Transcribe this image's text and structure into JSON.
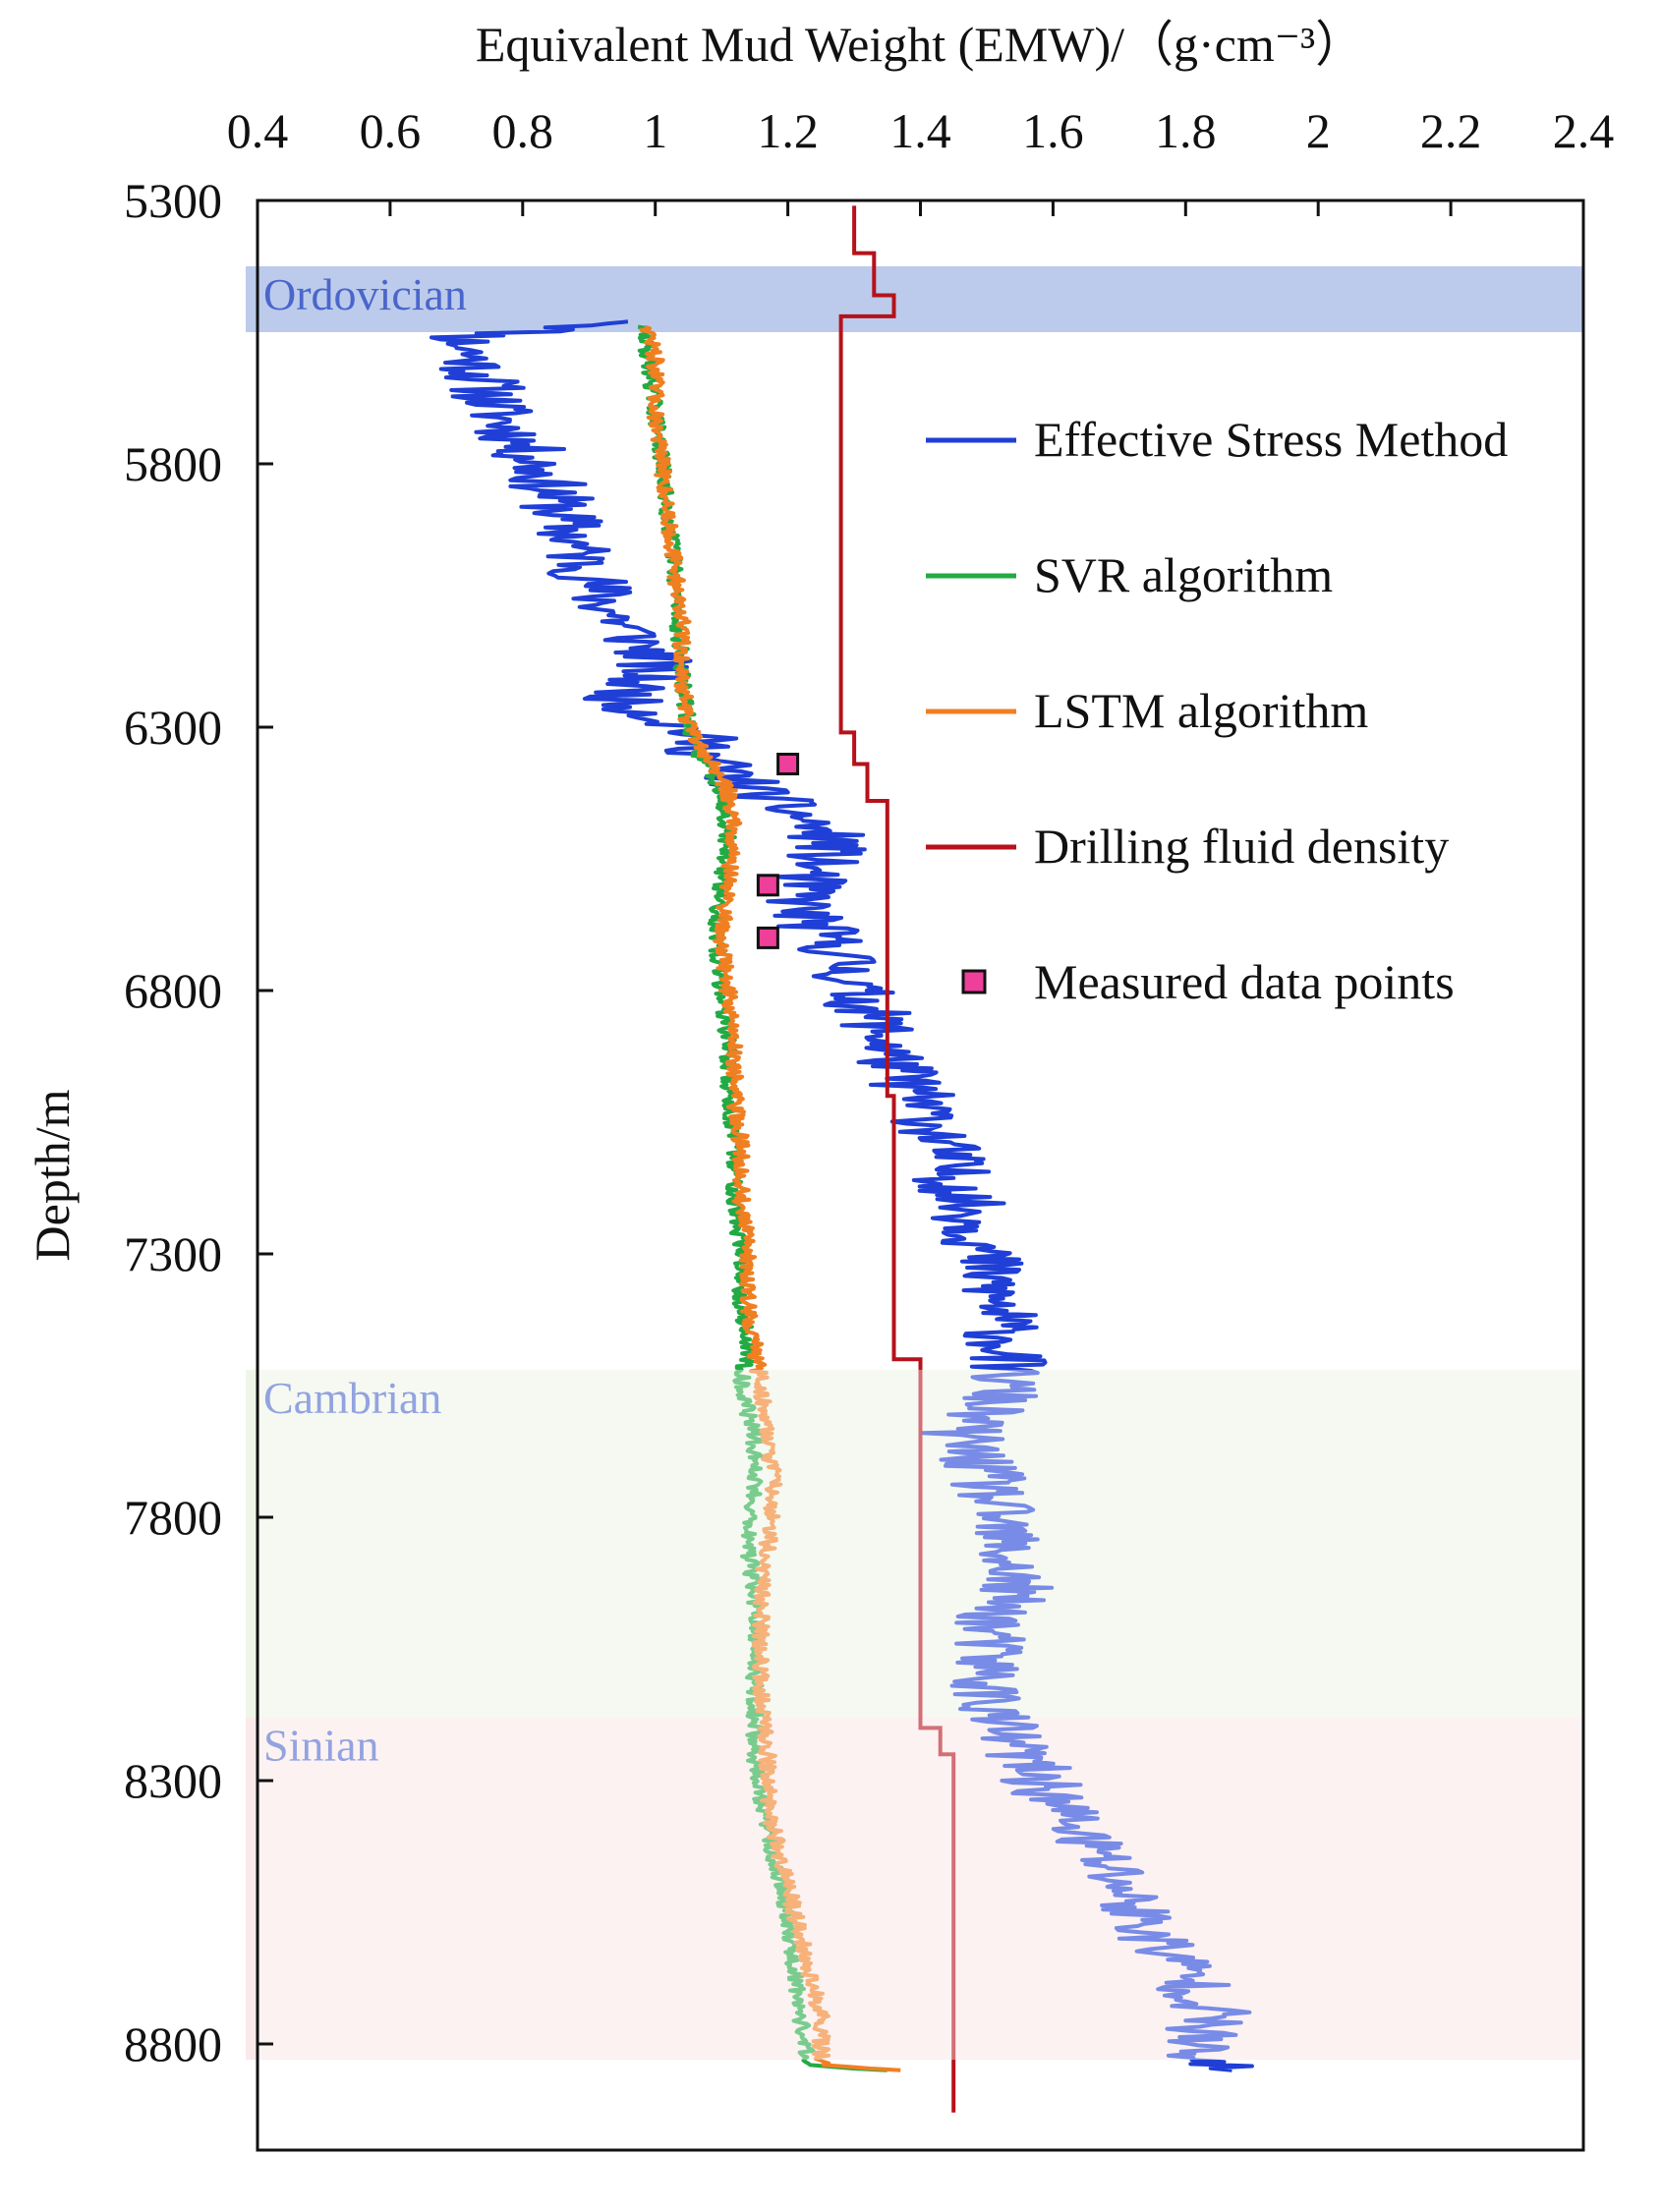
{
  "chart_data": {
    "type": "line",
    "xlabel": "Equivalent Mud Weight (EMW)/（g·cm⁻³）",
    "ylabel": "Depth/m",
    "xlim": [
      0.4,
      2.4
    ],
    "ylim": [
      5300,
      9100
    ],
    "y_inverted": true,
    "x_axis_position": "top",
    "grid": false,
    "legend_position": "top-right",
    "x_ticks": [
      "0.4",
      "0.6",
      "0.8",
      "1",
      "1.2",
      "1.4",
      "1.6",
      "1.8",
      "2",
      "2.2",
      "2.4"
    ],
    "y_ticks": [
      "5300",
      "5800",
      "6300",
      "6800",
      "7300",
      "7800",
      "8300",
      "8800"
    ],
    "zones": [
      {
        "name": "Ordovician",
        "top": 5425,
        "bottom": 5550,
        "color": "#bccbeb"
      },
      {
        "name": "Cambrian",
        "top": 7520,
        "bottom": 8180,
        "color": "#eff6e8"
      },
      {
        "name": "Sinian",
        "top": 8180,
        "bottom": 8830,
        "color": "#fbe9ea"
      }
    ],
    "series": [
      {
        "name": "Effective Stress Method",
        "color": "#1f3fd6",
        "kind": "line",
        "points": [
          [
            0.99,
            5530
          ],
          [
            0.71,
            5560
          ],
          [
            0.74,
            5640
          ],
          [
            0.76,
            5700
          ],
          [
            0.82,
            5800
          ],
          [
            0.85,
            5870
          ],
          [
            0.88,
            5960
          ],
          [
            0.92,
            6060
          ],
          [
            1.0,
            6170
          ],
          [
            0.95,
            6250
          ],
          [
            1.06,
            6310
          ],
          [
            1.08,
            6360
          ],
          [
            1.15,
            6420
          ],
          [
            1.22,
            6470
          ],
          [
            1.27,
            6520
          ],
          [
            1.23,
            6580
          ],
          [
            1.22,
            6650
          ],
          [
            1.28,
            6730
          ],
          [
            1.3,
            6800
          ],
          [
            1.34,
            6870
          ],
          [
            1.36,
            6940
          ],
          [
            1.4,
            7010
          ],
          [
            1.43,
            7080
          ],
          [
            1.45,
            7160
          ],
          [
            1.48,
            7240
          ],
          [
            1.5,
            7330
          ],
          [
            1.52,
            7420
          ],
          [
            1.53,
            7510
          ],
          [
            1.52,
            7570
          ],
          [
            1.46,
            7640
          ],
          [
            1.5,
            7730
          ],
          [
            1.52,
            7830
          ],
          [
            1.54,
            7930
          ],
          [
            1.5,
            8020
          ],
          [
            1.5,
            8120
          ],
          [
            1.52,
            8200
          ],
          [
            1.58,
            8300
          ],
          [
            1.64,
            8400
          ],
          [
            1.7,
            8490
          ],
          [
            1.74,
            8580
          ],
          [
            1.8,
            8660
          ],
          [
            1.84,
            8740
          ],
          [
            1.8,
            8830
          ],
          [
            1.87,
            8850
          ]
        ]
      },
      {
        "name": "SVR algorithm",
        "color": "#22aa44",
        "kind": "line",
        "points": [
          [
            0.98,
            5540
          ],
          [
            0.99,
            5600
          ],
          [
            1.0,
            5700
          ],
          [
            1.01,
            5800
          ],
          [
            1.02,
            5900
          ],
          [
            1.03,
            6000
          ],
          [
            1.035,
            6100
          ],
          [
            1.04,
            6200
          ],
          [
            1.05,
            6300
          ],
          [
            1.07,
            6360
          ],
          [
            1.1,
            6420
          ],
          [
            1.11,
            6500
          ],
          [
            1.1,
            6600
          ],
          [
            1.09,
            6700
          ],
          [
            1.1,
            6800
          ],
          [
            1.11,
            6900
          ],
          [
            1.11,
            7000
          ],
          [
            1.12,
            7100
          ],
          [
            1.12,
            7200
          ],
          [
            1.13,
            7300
          ],
          [
            1.13,
            7400
          ],
          [
            1.14,
            7480
          ],
          [
            1.13,
            7550
          ],
          [
            1.15,
            7650
          ],
          [
            1.15,
            7750
          ],
          [
            1.14,
            7850
          ],
          [
            1.15,
            7950
          ],
          [
            1.15,
            8050
          ],
          [
            1.15,
            8150
          ],
          [
            1.15,
            8250
          ],
          [
            1.16,
            8350
          ],
          [
            1.18,
            8450
          ],
          [
            1.2,
            8550
          ],
          [
            1.21,
            8650
          ],
          [
            1.22,
            8750
          ],
          [
            1.23,
            8840
          ],
          [
            1.35,
            8850
          ]
        ]
      },
      {
        "name": "LSTM algorithm",
        "color": "#f07f22",
        "kind": "line",
        "points": [
          [
            0.99,
            5540
          ],
          [
            1.0,
            5600
          ],
          [
            1.0,
            5700
          ],
          [
            1.01,
            5800
          ],
          [
            1.02,
            5900
          ],
          [
            1.03,
            6000
          ],
          [
            1.04,
            6100
          ],
          [
            1.04,
            6200
          ],
          [
            1.05,
            6300
          ],
          [
            1.08,
            6360
          ],
          [
            1.11,
            6420
          ],
          [
            1.12,
            6500
          ],
          [
            1.11,
            6600
          ],
          [
            1.1,
            6700
          ],
          [
            1.11,
            6800
          ],
          [
            1.12,
            6900
          ],
          [
            1.12,
            7000
          ],
          [
            1.13,
            7100
          ],
          [
            1.13,
            7200
          ],
          [
            1.14,
            7300
          ],
          [
            1.14,
            7400
          ],
          [
            1.15,
            7480
          ],
          [
            1.16,
            7550
          ],
          [
            1.17,
            7650
          ],
          [
            1.18,
            7750
          ],
          [
            1.17,
            7850
          ],
          [
            1.16,
            7950
          ],
          [
            1.16,
            8050
          ],
          [
            1.16,
            8150
          ],
          [
            1.17,
            8250
          ],
          [
            1.17,
            8350
          ],
          [
            1.19,
            8450
          ],
          [
            1.21,
            8550
          ],
          [
            1.23,
            8650
          ],
          [
            1.25,
            8750
          ],
          [
            1.25,
            8840
          ],
          [
            1.37,
            8850
          ]
        ]
      },
      {
        "name": "Drilling fluid density",
        "color": "#b5121b",
        "kind": "step",
        "points": [
          [
            1.3,
            5310
          ],
          [
            1.3,
            5400
          ],
          [
            1.33,
            5400
          ],
          [
            1.33,
            5480
          ],
          [
            1.36,
            5480
          ],
          [
            1.36,
            5520
          ],
          [
            1.28,
            5520
          ],
          [
            1.28,
            6310
          ],
          [
            1.3,
            6310
          ],
          [
            1.3,
            6370
          ],
          [
            1.32,
            6370
          ],
          [
            1.32,
            6440
          ],
          [
            1.35,
            6440
          ],
          [
            1.35,
            7000
          ],
          [
            1.36,
            7000
          ],
          [
            1.36,
            7500
          ],
          [
            1.4,
            7500
          ],
          [
            1.4,
            8200
          ],
          [
            1.43,
            8200
          ],
          [
            1.43,
            8250
          ],
          [
            1.45,
            8250
          ],
          [
            1.45,
            8930
          ]
        ]
      },
      {
        "name": "Measured data points",
        "color": "#ee3f9a",
        "kind": "scatter",
        "points": [
          [
            1.2,
            6370
          ],
          [
            1.17,
            6600
          ],
          [
            1.17,
            6700
          ]
        ]
      }
    ]
  }
}
